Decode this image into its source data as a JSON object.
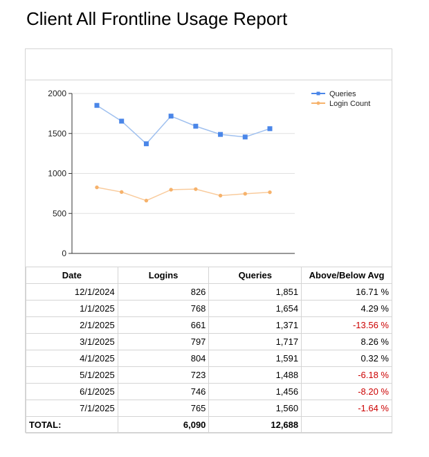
{
  "report": {
    "title": "Client All Frontline Usage Report"
  },
  "colors": {
    "queries": "#4a86e8",
    "queries_line": "#9fc0ef",
    "login_count": "#f6b26b",
    "login_line": "#f9cb9c",
    "negative": "#cc0000"
  },
  "chart_data": {
    "type": "line",
    "categories": [
      "12/1/2024",
      "1/1/2025",
      "2/1/2025",
      "3/1/2025",
      "4/1/2025",
      "5/1/2025",
      "6/1/2025",
      "7/1/2025"
    ],
    "series": [
      {
        "name": "Queries",
        "values": [
          1851,
          1654,
          1371,
          1717,
          1591,
          1488,
          1456,
          1560
        ],
        "marker": "square"
      },
      {
        "name": "Login Count",
        "values": [
          826,
          768,
          661,
          797,
          804,
          723,
          746,
          765
        ],
        "marker": "circle"
      }
    ],
    "ylim": [
      0,
      2000
    ],
    "yticks": [
      "0",
      "500",
      "1000",
      "1500",
      "2000"
    ],
    "grid": true,
    "legend_position": "top-right",
    "title": "",
    "xlabel": "",
    "ylabel": ""
  },
  "table": {
    "headers": [
      "Date",
      "Logins",
      "Queries",
      "Above/Below Avg"
    ],
    "rows": [
      {
        "date": "12/1/2024",
        "logins": "826",
        "queries": "1,851",
        "avg": "16.71 %",
        "negative": false
      },
      {
        "date": "1/1/2025",
        "logins": "768",
        "queries": "1,654",
        "avg": "4.29 %",
        "negative": false
      },
      {
        "date": "2/1/2025",
        "logins": "661",
        "queries": "1,371",
        "avg": "-13.56 %",
        "negative": true
      },
      {
        "date": "3/1/2025",
        "logins": "797",
        "queries": "1,717",
        "avg": "8.26 %",
        "negative": false
      },
      {
        "date": "4/1/2025",
        "logins": "804",
        "queries": "1,591",
        "avg": "0.32 %",
        "negative": false
      },
      {
        "date": "5/1/2025",
        "logins": "723",
        "queries": "1,488",
        "avg": "-6.18 %",
        "negative": true
      },
      {
        "date": "6/1/2025",
        "logins": "746",
        "queries": "1,456",
        "avg": "-8.20 %",
        "negative": true
      },
      {
        "date": "7/1/2025",
        "logins": "765",
        "queries": "1,560",
        "avg": "-1.64 %",
        "negative": true
      }
    ],
    "total": {
      "label": "TOTAL:",
      "logins": "6,090",
      "queries": "12,688",
      "avg": ""
    }
  }
}
